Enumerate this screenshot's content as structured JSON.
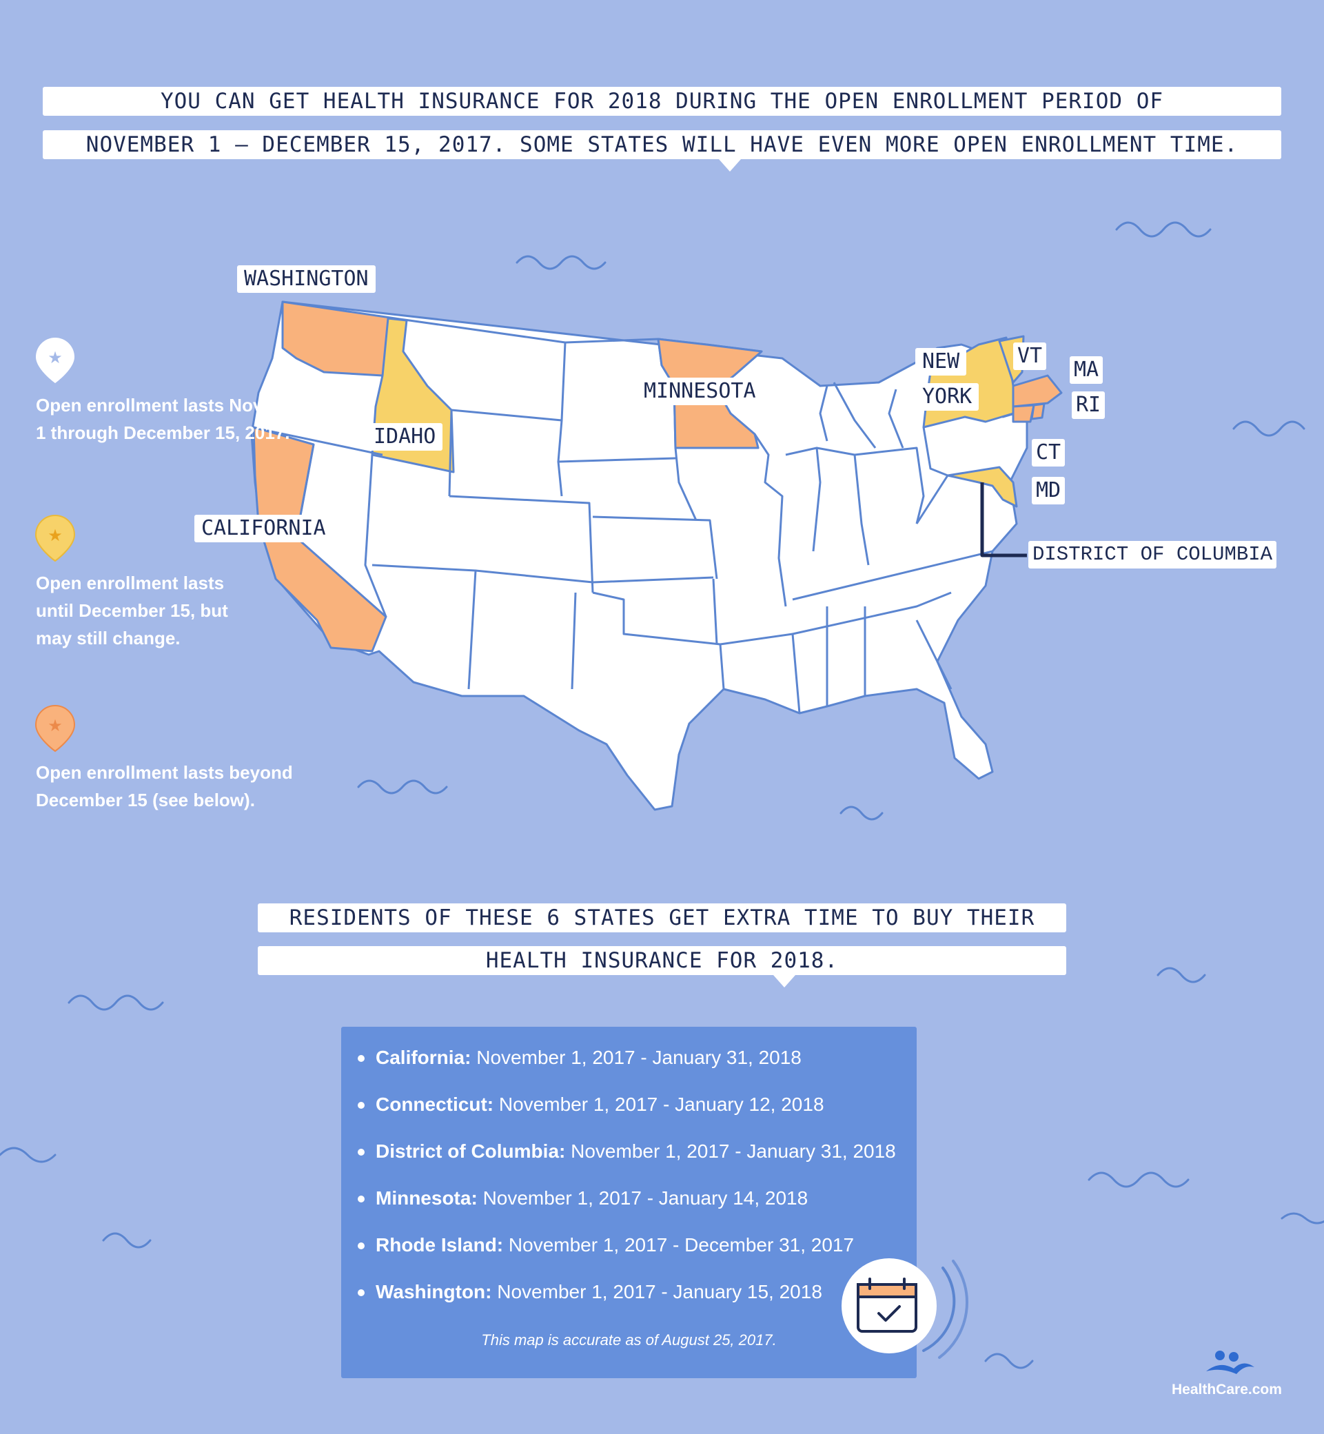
{
  "colors": {
    "background": "#a4b9e8",
    "state_default": "#ffffff",
    "state_yellow": "#f7d269",
    "state_orange": "#f9b27c",
    "state_border": "#5b85d0",
    "panel": "#6690dc",
    "text_dark": "#1d2a52"
  },
  "header": {
    "line1": "YOU CAN GET HEALTH INSURANCE FOR 2018 DURING THE OPEN ENROLLMENT PERIOD OF",
    "line2": "NOVEMBER 1 – DECEMBER 15, 2017. SOME STATES WILL HAVE EVEN MORE OPEN ENROLLMENT TIME."
  },
  "legend": [
    {
      "icon": "star-pin-white",
      "color": "#ffffff",
      "text": "Open enrollment lasts November 1 through December 15, 2017."
    },
    {
      "icon": "star-pin-yellow",
      "color": "#f7d269",
      "text": "Open enrollment lasts until December 15, but may still change."
    },
    {
      "icon": "star-pin-orange",
      "color": "#f9b27c",
      "text": "Open enrollment lasts beyond December 15 (see below)."
    }
  ],
  "map_labels": {
    "washington": "WASHINGTON",
    "idaho": "IDAHO",
    "california": "CALIFORNIA",
    "minnesota": "MINNESOTA",
    "new": "NEW",
    "york": "YORK",
    "vt": "VT",
    "ma": "MA",
    "ri": "RI",
    "ct": "CT",
    "md": "MD",
    "dc": "DISTRICT OF COLUMBIA"
  },
  "sub_header": {
    "line1": "RESIDENTS OF THESE 6 STATES GET EXTRA TIME TO BUY THEIR",
    "line2": "HEALTH INSURANCE FOR 2018."
  },
  "extended_states": [
    {
      "state": "California:",
      "dates": "November 1, 2017 - January 31, 2018"
    },
    {
      "state": "Connecticut:",
      "dates": "November 1, 2017 - January 12, 2018"
    },
    {
      "state": "District of Columbia:",
      "dates": "November 1, 2017 - January 31, 2018"
    },
    {
      "state": "Minnesota:",
      "dates": "November 1, 2017 - January 14, 2018"
    },
    {
      "state": "Rhode Island:",
      "dates": "November 1, 2017 - December 31, 2017"
    },
    {
      "state": "Washington:",
      "dates": "November 1, 2017 - January 15, 2018"
    }
  ],
  "note": "This map is accurate as of August 25, 2017.",
  "logo": {
    "text": "HealthCare.com",
    "icon": "healthcare-logo-icon"
  },
  "calendar_icon": "calendar-check-icon"
}
